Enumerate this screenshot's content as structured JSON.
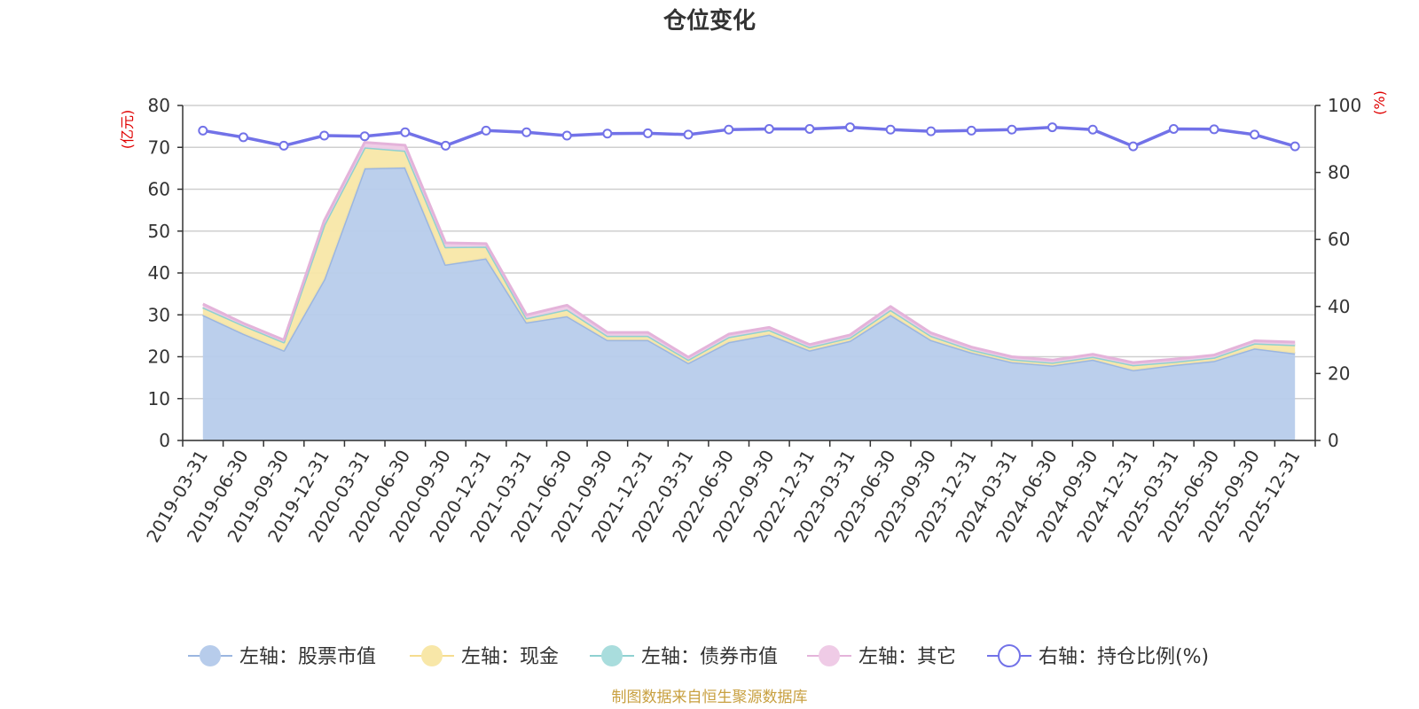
{
  "chart_data": {
    "type": "area",
    "title": "仓位变化",
    "source": "制图数据来自恒生聚源数据库",
    "left_axis": {
      "unit": "(亿元)",
      "range": [
        0,
        80
      ],
      "ticks": [
        0,
        10,
        20,
        30,
        40,
        50,
        60,
        70,
        80
      ]
    },
    "right_axis": {
      "unit": "(%)",
      "range": [
        0,
        100
      ],
      "ticks": [
        0,
        20,
        40,
        60,
        80,
        100
      ]
    },
    "grid": true,
    "legend_position": "bottom",
    "categories": [
      "2019-03-31",
      "2019-06-30",
      "2019-09-30",
      "2019-12-31",
      "2020-03-31",
      "2020-06-30",
      "2020-09-30",
      "2020-12-31",
      "2021-03-31",
      "2021-06-30",
      "2021-09-30",
      "2021-12-31",
      "2022-03-31",
      "2022-06-30",
      "2022-09-30",
      "2022-12-31",
      "2023-03-31",
      "2023-06-30",
      "2023-09-30",
      "2023-12-31",
      "2024-03-31",
      "2024-06-30",
      "2024-09-30",
      "2024-12-31",
      "2025-03-31",
      "2025-06-30",
      "2025-09-30",
      "2025-12-31"
    ],
    "series": [
      {
        "name": "左轴：股票市值",
        "axis": "left",
        "kind": "stacked-area",
        "color": "#9bb6e0",
        "fill": "#b7cceb",
        "values": [
          30.0,
          25.5,
          21.5,
          38.5,
          65.0,
          65.2,
          42.0,
          43.5,
          28.2,
          29.7,
          24.0,
          24.0,
          18.5,
          23.5,
          25.3,
          21.5,
          23.8,
          30.0,
          24.0,
          21.0,
          18.7,
          17.9,
          19.3,
          16.8,
          18.0,
          19.0,
          22.0,
          20.8
        ]
      },
      {
        "name": "左轴：现金",
        "axis": "left",
        "kind": "stacked-area",
        "color": "#f5dc8f",
        "fill": "#f8e7a8",
        "values": [
          1.8,
          2.0,
          2.0,
          13.0,
          5.0,
          4.0,
          4.2,
          2.8,
          1.0,
          1.6,
          1.0,
          1.0,
          0.8,
          1.2,
          1.1,
          0.8,
          0.8,
          1.2,
          1.0,
          0.7,
          0.7,
          0.7,
          0.7,
          1.2,
          0.8,
          0.8,
          1.2,
          2.0
        ]
      },
      {
        "name": "左轴：债券市值",
        "axis": "left",
        "kind": "stacked-area",
        "color": "#8fd1d1",
        "fill": "#a9dddd",
        "values": [
          0,
          0,
          0,
          0,
          0,
          0,
          0,
          0,
          0,
          0,
          0,
          0,
          0,
          0,
          0,
          0,
          0,
          0,
          0,
          0,
          0,
          0,
          0,
          0,
          0,
          0,
          0,
          0
        ]
      },
      {
        "name": "左轴：其它",
        "axis": "left",
        "kind": "stacked-area",
        "color": "#e4b3da",
        "fill": "#efcbe6",
        "values": [
          0.8,
          0.5,
          0.5,
          1.0,
          1.2,
          1.3,
          1.0,
          0.7,
          0.8,
          1.0,
          0.8,
          0.8,
          0.6,
          0.7,
          0.6,
          0.6,
          0.6,
          0.8,
          0.7,
          0.6,
          0.6,
          0.6,
          0.6,
          0.6,
          0.6,
          0.6,
          0.6,
          0.7
        ]
      },
      {
        "name": "右轴：持仓比例(%)",
        "axis": "right",
        "kind": "line",
        "color": "#7272e8",
        "values": [
          92.5,
          90.5,
          88.0,
          91.0,
          90.8,
          92.0,
          88.0,
          92.5,
          92.0,
          91.0,
          91.6,
          91.7,
          91.3,
          92.8,
          93.0,
          93.0,
          93.5,
          92.8,
          92.3,
          92.5,
          92.8,
          93.5,
          92.8,
          87.8,
          93.0,
          92.9,
          91.3,
          87.8
        ]
      }
    ]
  }
}
